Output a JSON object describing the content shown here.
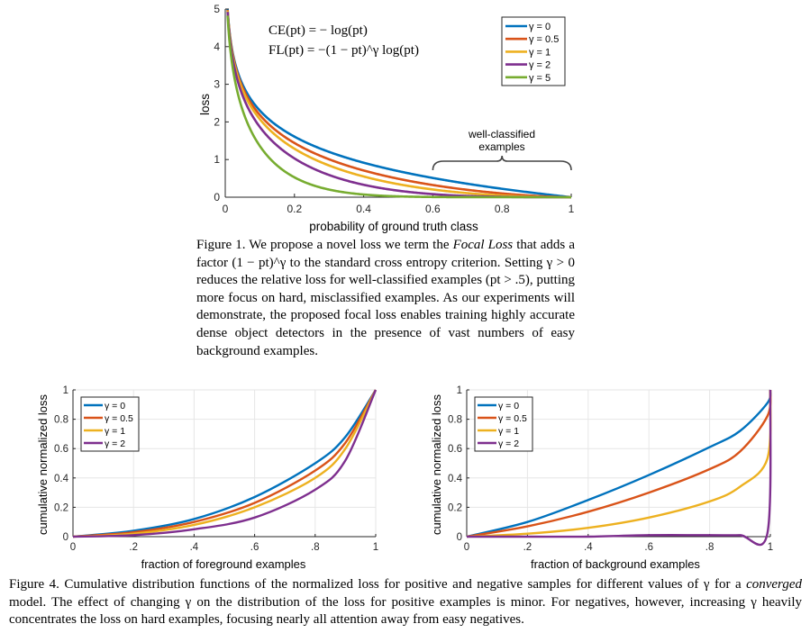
{
  "chart_data": [
    {
      "type": "line",
      "xlabel": "probability of ground truth class",
      "ylabel": "loss",
      "xlim": [
        0,
        1
      ],
      "ylim": [
        0,
        5
      ],
      "xticks": [
        "0",
        "0.2",
        "0.4",
        "0.6",
        "0.8",
        "1"
      ],
      "yticks": [
        "0",
        "1",
        "2",
        "3",
        "4",
        "5"
      ],
      "grid": false,
      "legend_position": "top-right",
      "formulas": [
        "CE(pt) = − log(pt)",
        "FL(pt) = −(1 − pt)^γ log(pt)"
      ],
      "annotation": [
        "well-classified",
        "examples"
      ],
      "annotation_x_range": [
        0.6,
        1.0
      ],
      "series": [
        {
          "name": "γ = 0",
          "gamma": 0,
          "color": "#0072BD"
        },
        {
          "name": "γ = 0.5",
          "gamma": 0.5,
          "color": "#D95319"
        },
        {
          "name": "γ = 1",
          "gamma": 1,
          "color": "#EDB120"
        },
        {
          "name": "γ = 2",
          "gamma": 2,
          "color": "#7E2F8E"
        },
        {
          "name": "γ = 5",
          "gamma": 5,
          "color": "#77AC30"
        }
      ],
      "sample_x": [
        0.01,
        0.05,
        0.1,
        0.2,
        0.3,
        0.4,
        0.5,
        0.6,
        0.7,
        0.8,
        0.9,
        1.0
      ],
      "sample_values": {
        "γ = 0": [
          4.61,
          3.0,
          2.3,
          1.61,
          1.2,
          0.92,
          0.69,
          0.51,
          0.36,
          0.22,
          0.11,
          0
        ],
        "γ = 0.5": [
          4.58,
          2.92,
          2.18,
          1.44,
          1.0,
          0.71,
          0.49,
          0.32,
          0.2,
          0.1,
          0.03,
          0
        ],
        "γ = 1": [
          4.56,
          2.85,
          2.07,
          1.29,
          0.84,
          0.55,
          0.35,
          0.2,
          0.11,
          0.04,
          0.01,
          0
        ],
        "γ = 2": [
          4.52,
          2.71,
          1.87,
          1.03,
          0.59,
          0.33,
          0.17,
          0.08,
          0.03,
          0.01,
          0.0,
          0
        ],
        "γ = 5": [
          4.38,
          2.32,
          1.36,
          0.53,
          0.2,
          0.07,
          0.02,
          0.01,
          0.0,
          0.0,
          0.0,
          0
        ]
      }
    },
    {
      "type": "line",
      "xlabel": "fraction of foreground examples",
      "ylabel": "cumulative normalized loss",
      "xlim": [
        0,
        1
      ],
      "ylim": [
        0,
        1
      ],
      "xticks": [
        "0",
        ".2",
        ".4",
        ".6",
        ".8",
        "1"
      ],
      "yticks": [
        "0",
        "0.2",
        "0.4",
        "0.6",
        "0.8",
        "1"
      ],
      "grid": true,
      "legend_position": "top-left",
      "series": [
        {
          "name": "γ = 0",
          "color": "#0072BD",
          "x": [
            0,
            0.2,
            0.4,
            0.6,
            0.8,
            0.9,
            1.0
          ],
          "y": [
            0,
            0.04,
            0.12,
            0.27,
            0.5,
            0.68,
            1.0
          ]
        },
        {
          "name": "γ = 0.5",
          "color": "#D95319",
          "x": [
            0,
            0.2,
            0.4,
            0.6,
            0.8,
            0.9,
            1.0
          ],
          "y": [
            0,
            0.03,
            0.1,
            0.23,
            0.45,
            0.64,
            1.0
          ]
        },
        {
          "name": "γ = 1",
          "color": "#EDB120",
          "x": [
            0,
            0.2,
            0.4,
            0.6,
            0.8,
            0.9,
            1.0
          ],
          "y": [
            0,
            0.02,
            0.08,
            0.2,
            0.4,
            0.6,
            1.0
          ]
        },
        {
          "name": "γ = 2",
          "color": "#7E2F8E",
          "x": [
            0,
            0.2,
            0.4,
            0.6,
            0.8,
            0.9,
            1.0
          ],
          "y": [
            0,
            0.01,
            0.05,
            0.13,
            0.32,
            0.52,
            1.0
          ]
        }
      ]
    },
    {
      "type": "line",
      "xlabel": "fraction of background examples",
      "ylabel": "cumulative normalized loss",
      "xlim": [
        0,
        1
      ],
      "ylim": [
        0,
        1
      ],
      "xticks": [
        "0",
        ".2",
        ".4",
        ".6",
        ".8",
        "1"
      ],
      "yticks": [
        "0",
        "0.2",
        "0.4",
        "0.6",
        "0.8",
        "1"
      ],
      "grid": true,
      "legend_position": "top-left",
      "series": [
        {
          "name": "γ = 0",
          "color": "#0072BD",
          "x": [
            0,
            0.2,
            0.4,
            0.6,
            0.8,
            0.9,
            0.99,
            1.0
          ],
          "y": [
            0,
            0.1,
            0.25,
            0.42,
            0.61,
            0.72,
            0.91,
            1.0
          ]
        },
        {
          "name": "γ = 0.5",
          "color": "#D95319",
          "x": [
            0,
            0.2,
            0.4,
            0.6,
            0.8,
            0.9,
            0.99,
            1.0
          ],
          "y": [
            0,
            0.07,
            0.17,
            0.3,
            0.46,
            0.58,
            0.82,
            1.0
          ]
        },
        {
          "name": "γ = 1",
          "color": "#EDB120",
          "x": [
            0,
            0.2,
            0.4,
            0.6,
            0.8,
            0.9,
            0.99,
            1.0
          ],
          "y": [
            0,
            0.02,
            0.06,
            0.13,
            0.24,
            0.34,
            0.53,
            1.0
          ]
        },
        {
          "name": "γ = 2",
          "color": "#7E2F8E",
          "x": [
            0,
            0.2,
            0.4,
            0.6,
            0.8,
            0.9,
            0.99,
            1.0
          ],
          "y": [
            0,
            0.0,
            0.0,
            0.01,
            0.01,
            0.01,
            0.02,
            1.0
          ]
        }
      ]
    }
  ],
  "figure1_caption": {
    "part1": "Figure 1. We propose a novel loss we term the ",
    "em": "Focal Loss",
    "part2": " that adds a factor (1 − pt)^γ to the standard cross entropy criterion. Setting γ > 0 reduces the relative loss for well-classified examples (pt > .5), putting more focus on hard, misclassified examples. As our experiments will demonstrate, the proposed focal loss enables training highly accurate dense object detectors in the presence of vast numbers of easy background examples."
  },
  "figure4_caption": {
    "part1": "Figure 4. Cumulative distribution functions of the normalized loss for positive and negative samples for different values of γ for a ",
    "em": "converged",
    "part2": " model. The effect of changing γ on the distribution of the loss for positive examples is minor. For negatives, however, increasing γ heavily concentrates the loss on hard examples, focusing nearly all attention away from easy negatives."
  }
}
